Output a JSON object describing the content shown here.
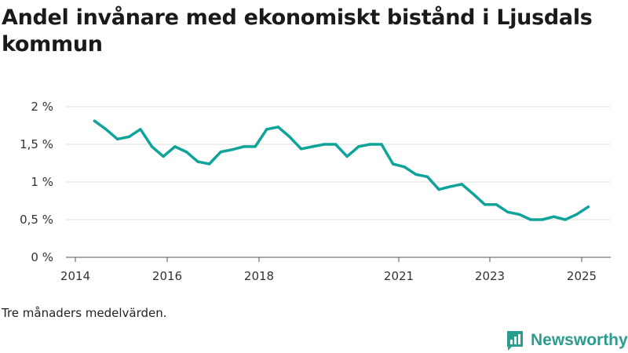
{
  "title": "Andel invånare med ekonomiskt bistånd i Ljusdals kommun",
  "footnote": "Tre månaders medelvärden.",
  "brand": {
    "name": "Newsworthy",
    "icon": "newsworthy-logo-icon",
    "color": "#2a9d8f"
  },
  "chart_data": {
    "type": "line",
    "title": "Andel invånare med ekonomiskt bistånd i Ljusdals kommun",
    "xlabel": "",
    "ylabel": "",
    "x_ticks": [
      "2014",
      "2016",
      "2018",
      "2021",
      "2023",
      "2025"
    ],
    "y_ticks": [
      "0 %",
      "0,5 %",
      "1 %",
      "1,5 %",
      "2 %"
    ],
    "y_tick_values": [
      0,
      0.5,
      1,
      1.5,
      2
    ],
    "ylim": [
      0,
      2
    ],
    "xlim": [
      "2014-01",
      "2025-06"
    ],
    "grid": "horizontal",
    "line_color": "#0fa39a",
    "series": [
      {
        "points": [
          [
            "2014-06",
            1.81
          ],
          [
            "2014-09",
            1.7
          ],
          [
            "2014-12",
            1.57
          ],
          [
            "2015-03",
            1.6
          ],
          [
            "2015-06",
            1.7
          ],
          [
            "2015-09",
            1.47
          ],
          [
            "2015-12",
            1.34
          ],
          [
            "2016-03",
            1.47
          ],
          [
            "2016-06",
            1.4
          ],
          [
            "2016-09",
            1.27
          ],
          [
            "2016-12",
            1.24
          ],
          [
            "2017-03",
            1.4
          ],
          [
            "2017-06",
            1.43
          ],
          [
            "2017-09",
            1.47
          ],
          [
            "2017-12",
            1.47
          ],
          [
            "2018-03",
            1.7
          ],
          [
            "2018-06",
            1.73
          ],
          [
            "2018-09",
            1.6
          ],
          [
            "2018-12",
            1.44
          ],
          [
            "2019-03",
            1.47
          ],
          [
            "2019-06",
            1.5
          ],
          [
            "2019-09",
            1.5
          ],
          [
            "2019-12",
            1.34
          ],
          [
            "2020-03",
            1.47
          ],
          [
            "2020-06",
            1.5
          ],
          [
            "2020-09",
            1.5
          ],
          [
            "2020-12",
            1.24
          ],
          [
            "2021-03",
            1.2
          ],
          [
            "2021-06",
            1.1
          ],
          [
            "2021-09",
            1.07
          ],
          [
            "2021-12",
            0.9
          ],
          [
            "2022-03",
            0.94
          ],
          [
            "2022-06",
            0.97
          ],
          [
            "2022-09",
            0.84
          ],
          [
            "2022-12",
            0.7
          ],
          [
            "2023-03",
            0.7
          ],
          [
            "2023-06",
            0.6
          ],
          [
            "2023-09",
            0.57
          ],
          [
            "2023-12",
            0.5
          ],
          [
            "2024-03",
            0.5
          ],
          [
            "2024-06",
            0.54
          ],
          [
            "2024-09",
            0.5
          ],
          [
            "2024-12",
            0.57
          ],
          [
            "2025-03",
            0.67
          ]
        ]
      }
    ]
  }
}
